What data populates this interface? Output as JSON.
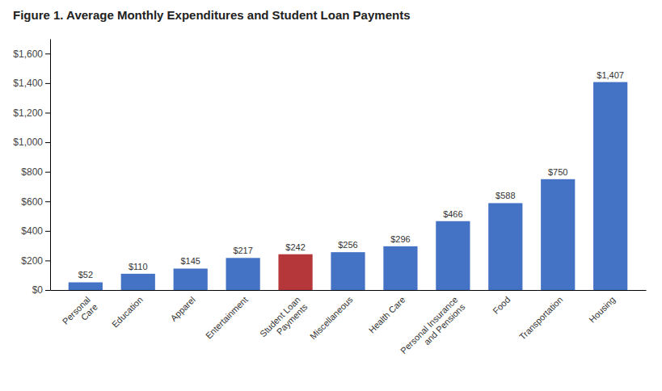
{
  "chart_data": {
    "type": "bar",
    "title": "Figure 1. Average Monthly Expenditures and Student Loan Payments",
    "categories": [
      "Personal\nCare",
      "Education",
      "Apparel",
      "Entertainment",
      "Student Loan\nPayments",
      "Miscellaneous",
      "Health Care",
      "Personal Insurance\nand Pensions",
      "Food",
      "Transportation",
      "Housing"
    ],
    "values": [
      52,
      110,
      145,
      217,
      242,
      256,
      296,
      466,
      588,
      750,
      1407
    ],
    "value_labels": [
      "$52",
      "$110",
      "$145",
      "$217",
      "$242",
      "$256",
      "$296",
      "$466",
      "$588",
      "$750",
      "$1,407"
    ],
    "colors": [
      "#4472C4",
      "#4472C4",
      "#4472C4",
      "#4472C4",
      "#B5373A",
      "#4472C4",
      "#4472C4",
      "#4472C4",
      "#4472C4",
      "#4472C4",
      "#4472C4"
    ],
    "ylim": [
      0,
      1700
    ],
    "yticks": [
      {
        "value": 0,
        "label": "$0"
      },
      {
        "value": 200,
        "label": "$200"
      },
      {
        "value": 400,
        "label": "$400"
      },
      {
        "value": 600,
        "label": "$600"
      },
      {
        "value": 800,
        "label": "$800"
      },
      {
        "value": 1000,
        "label": "$1,000"
      },
      {
        "value": 1200,
        "label": "$1,200"
      },
      {
        "value": 1400,
        "label": "$1,400"
      },
      {
        "value": 1600,
        "label": "$1,600"
      }
    ],
    "data_labels": true,
    "grid": false
  }
}
